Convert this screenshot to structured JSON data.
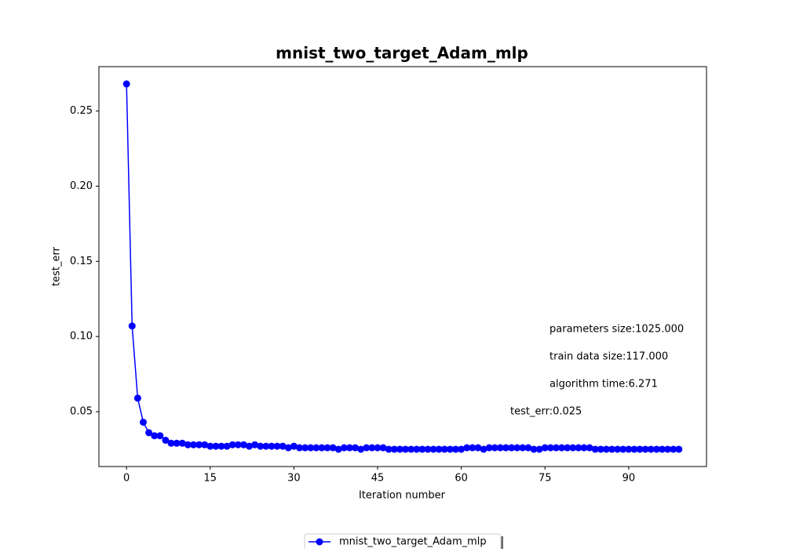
{
  "chart_data": {
    "type": "line",
    "title": "mnist_two_target_Adam_mlp",
    "xlabel": "Iteration number",
    "ylabel": "test_err",
    "x": [
      0,
      1,
      2,
      3,
      4,
      5,
      6,
      7,
      8,
      9,
      10,
      11,
      12,
      13,
      14,
      15,
      16,
      17,
      18,
      19,
      20,
      21,
      22,
      23,
      24,
      25,
      26,
      27,
      28,
      29,
      30,
      31,
      32,
      33,
      34,
      35,
      36,
      37,
      38,
      39,
      40,
      41,
      42,
      43,
      44,
      45,
      46,
      47,
      48,
      49,
      50,
      51,
      52,
      53,
      54,
      55,
      56,
      57,
      58,
      59,
      60,
      61,
      62,
      63,
      64,
      65,
      66,
      67,
      68,
      69,
      70,
      71,
      72,
      73,
      74,
      75,
      76,
      77,
      78,
      79,
      80,
      81,
      82,
      83,
      84,
      85,
      86,
      87,
      88,
      89,
      90,
      91,
      92,
      93,
      94,
      95,
      96,
      97,
      98,
      99
    ],
    "series": [
      {
        "name": "mnist_two_target_Adam_mlp",
        "color": "#0000ff",
        "values": [
          0.268,
          0.107,
          0.059,
          0.043,
          0.036,
          0.034,
          0.034,
          0.031,
          0.029,
          0.029,
          0.029,
          0.028,
          0.028,
          0.028,
          0.028,
          0.027,
          0.027,
          0.027,
          0.027,
          0.028,
          0.028,
          0.028,
          0.027,
          0.028,
          0.027,
          0.027,
          0.027,
          0.027,
          0.027,
          0.026,
          0.027,
          0.026,
          0.026,
          0.026,
          0.026,
          0.026,
          0.026,
          0.026,
          0.025,
          0.026,
          0.026,
          0.026,
          0.025,
          0.026,
          0.026,
          0.026,
          0.026,
          0.025,
          0.025,
          0.025,
          0.025,
          0.025,
          0.025,
          0.025,
          0.025,
          0.025,
          0.025,
          0.025,
          0.025,
          0.025,
          0.025,
          0.026,
          0.026,
          0.026,
          0.025,
          0.026,
          0.026,
          0.026,
          0.026,
          0.026,
          0.026,
          0.026,
          0.026,
          0.025,
          0.025,
          0.026,
          0.026,
          0.026,
          0.026,
          0.026,
          0.026,
          0.026,
          0.026,
          0.026,
          0.025,
          0.025,
          0.025,
          0.025,
          0.025,
          0.025,
          0.025,
          0.025,
          0.025,
          0.025,
          0.025,
          0.025,
          0.025,
          0.025,
          0.025,
          0.025
        ]
      }
    ],
    "xlim": [
      -4.95,
      103.95
    ],
    "ylim": [
      0.0135,
      0.2795
    ],
    "xticks": [
      0,
      15,
      30,
      45,
      60,
      75,
      90
    ],
    "yticks": [
      {
        "value": 0.05,
        "label": "0.05"
      },
      {
        "value": 0.1,
        "label": "0.10"
      },
      {
        "value": 0.15,
        "label": "0.15"
      },
      {
        "value": 0.2,
        "label": "0.20"
      },
      {
        "value": 0.25,
        "label": "0.25"
      }
    ],
    "annotations": [
      "parameters size:1025.000",
      "train data size:117.000",
      "algorithm time:6.271",
      "test_err:0.025"
    ],
    "legend": "lower center"
  }
}
